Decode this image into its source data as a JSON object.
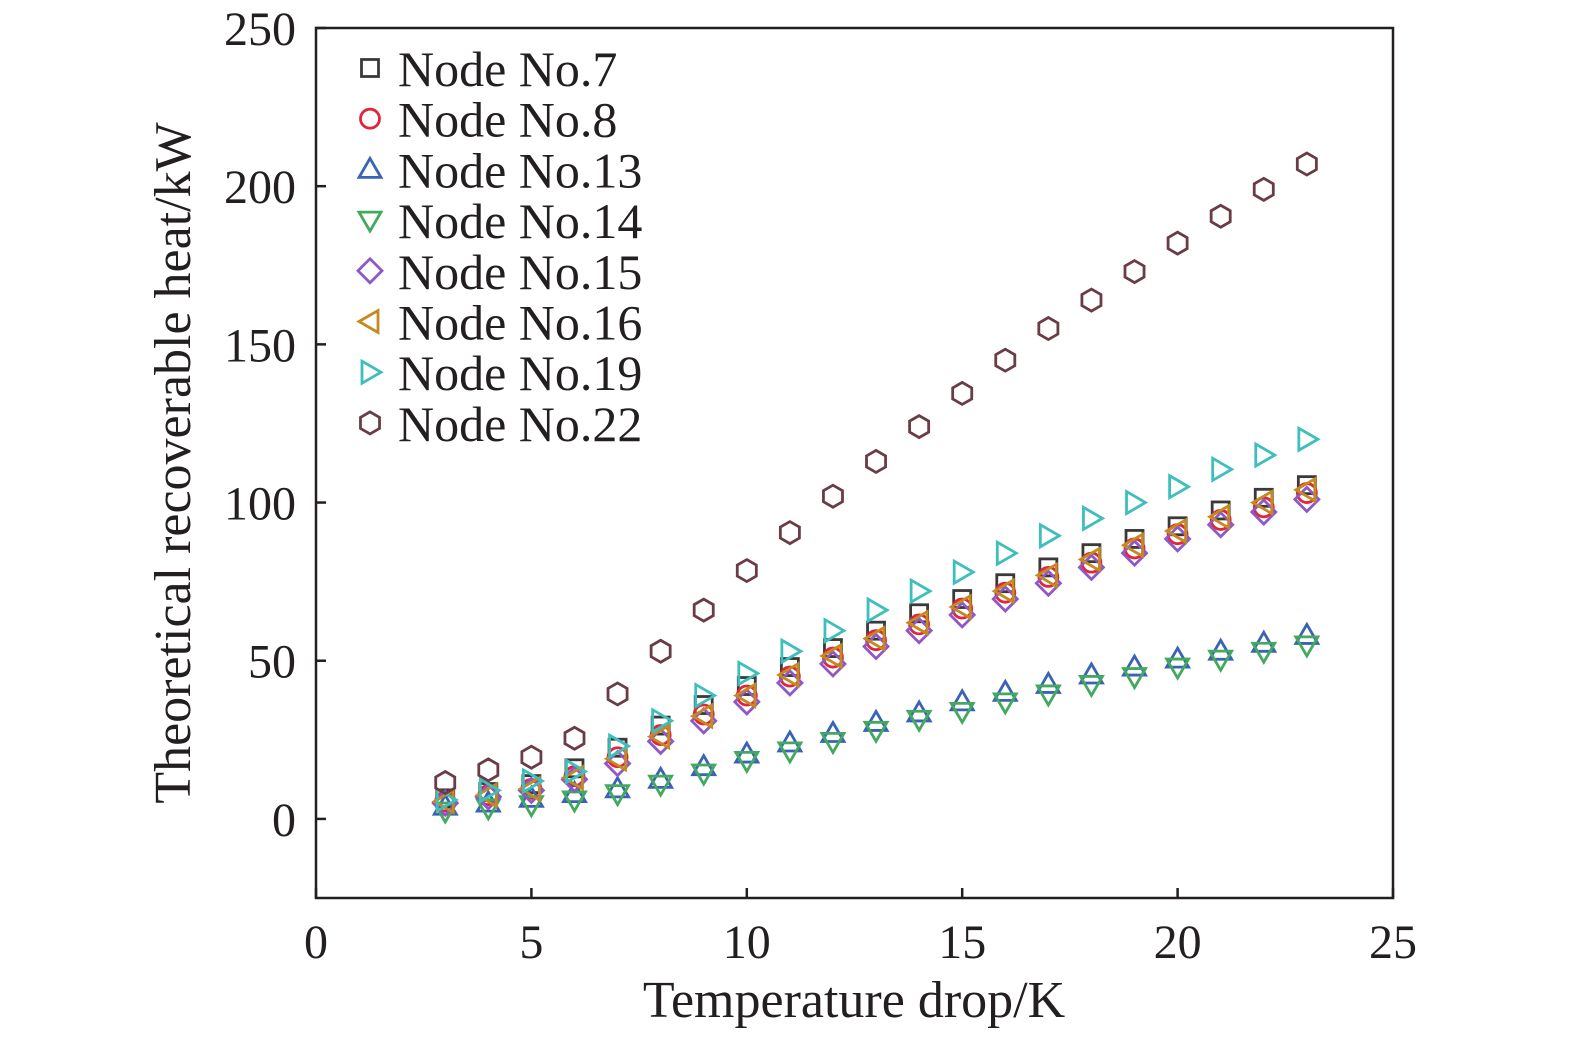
{
  "chart_data": {
    "type": "scatter",
    "xlabel": "Temperature drop/K",
    "ylabel": "Theoretical recoverable heat/kW",
    "xlim": [
      0,
      25
    ],
    "ylim": [
      -25,
      250
    ],
    "xticks": [
      "0",
      "5",
      "10",
      "15",
      "20",
      "25"
    ],
    "yticks": [
      "0",
      "50",
      "100",
      "150",
      "200",
      "250"
    ],
    "grid": false,
    "legend_position": "top-left",
    "x": [
      3,
      4,
      5,
      6,
      7,
      8,
      9,
      10,
      11,
      12,
      13,
      14,
      15,
      16,
      17,
      18,
      19,
      20,
      21,
      22,
      23
    ],
    "series": [
      {
        "name": "Node No.7",
        "marker": "square",
        "color": "#3a3a3a",
        "values": [
          6.5,
          8.5,
          11,
          16,
          22.5,
          29.5,
          36,
          42,
          48,
          54,
          59.5,
          65,
          69.5,
          74.5,
          79.5,
          84,
          88.5,
          92.5,
          97.5,
          101.5,
          105.5
        ]
      },
      {
        "name": "Node No.8",
        "marker": "circle",
        "color": "#e0263a",
        "values": [
          5.5,
          7.5,
          9.5,
          13.5,
          19.5,
          26.5,
          33,
          39,
          45,
          51,
          56.5,
          61.5,
          66.5,
          71.5,
          76.5,
          81,
          85.5,
          90,
          94.5,
          98.5,
          103
        ]
      },
      {
        "name": "Node No.13",
        "marker": "triangle-up",
        "color": "#3a62b5",
        "values": [
          4,
          5,
          6.5,
          8,
          9.5,
          12.5,
          16.5,
          20.5,
          24,
          27,
          30.5,
          33.5,
          37,
          40,
          42.5,
          45.5,
          48,
          50.5,
          53,
          55.5,
          58
        ]
      },
      {
        "name": "Node No.14",
        "marker": "triangle-down",
        "color": "#43a95f",
        "values": [
          2.5,
          3.5,
          4.5,
          6,
          8,
          11,
          14.5,
          18.5,
          21.5,
          24.5,
          28,
          31.5,
          34,
          37,
          39.5,
          42.5,
          45,
          48,
          50.5,
          53,
          55
        ]
      },
      {
        "name": "Node No.15",
        "marker": "diamond",
        "color": "#9057c7",
        "values": [
          5,
          7,
          9,
          12.5,
          17.5,
          24.5,
          31,
          37,
          43,
          49,
          54.5,
          59.5,
          64.5,
          69.5,
          74.5,
          79.5,
          84,
          88.5,
          93,
          97,
          101
        ]
      },
      {
        "name": "Node No.16",
        "marker": "triangle-left",
        "color": "#c58a1d",
        "values": [
          5.5,
          7.5,
          9.5,
          13,
          19,
          26,
          32.5,
          39,
          45.5,
          51.5,
          57,
          62,
          67,
          72,
          77,
          82,
          86.5,
          91,
          95.5,
          100,
          104
        ]
      },
      {
        "name": "Node No.19",
        "marker": "triangle-right",
        "color": "#3fbfbb",
        "values": [
          6,
          9,
          12,
          15,
          23,
          31,
          39,
          46,
          53,
          59.5,
          66,
          72,
          78,
          84,
          89.5,
          95,
          100,
          105,
          110.5,
          115,
          120
        ]
      },
      {
        "name": "Node No.22",
        "marker": "hexagon",
        "color": "#6a3c45",
        "values": [
          11.5,
          15.5,
          19.5,
          25.5,
          39.5,
          53,
          66,
          78.5,
          90.5,
          102,
          113,
          124,
          134.5,
          145,
          155,
          164,
          173,
          182,
          190.5,
          199,
          207
        ]
      }
    ]
  }
}
